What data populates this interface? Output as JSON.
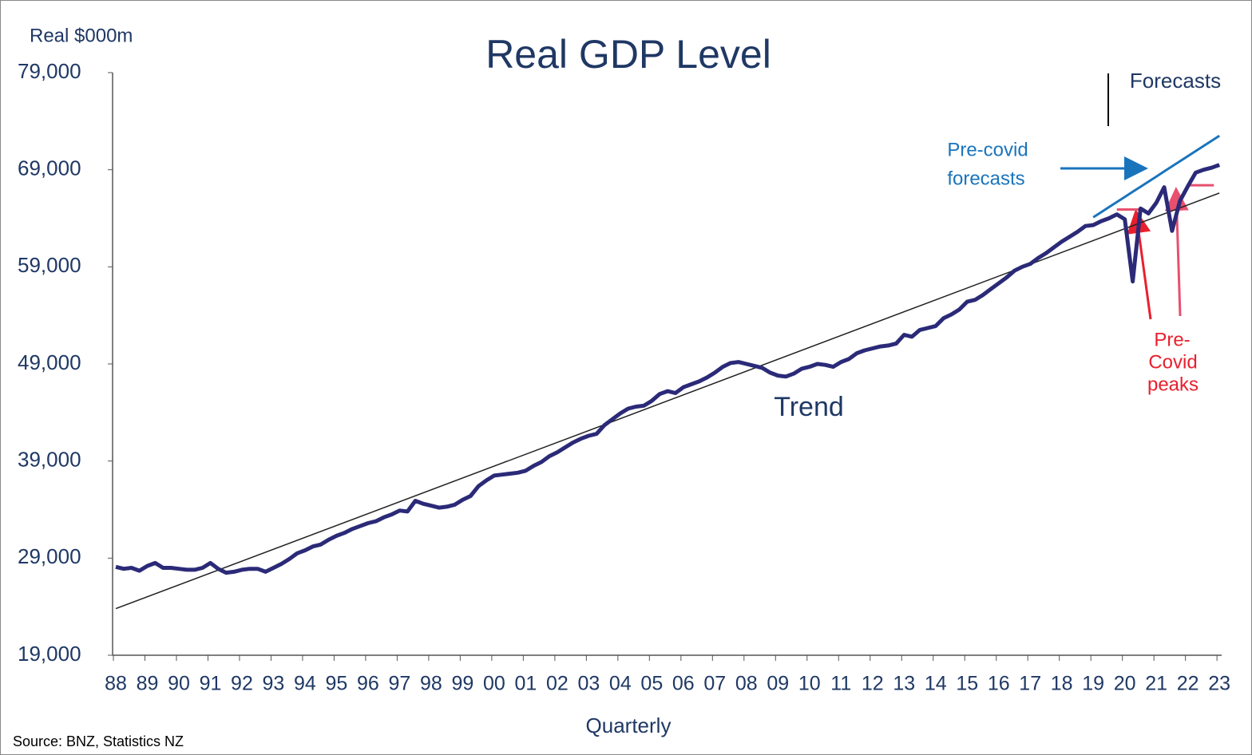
{
  "chart_data": {
    "type": "line",
    "title": "Real GDP Level",
    "y_label": "Real $000m",
    "x_label": "Quarterly",
    "source": "Source:  BNZ, Statistics NZ",
    "categories": [
      "88",
      null,
      null,
      null,
      "89",
      null,
      null,
      null,
      "90",
      null,
      null,
      null,
      "91",
      null,
      null,
      null,
      "92",
      null,
      null,
      null,
      "93",
      null,
      null,
      null,
      "94",
      null,
      null,
      null,
      "95",
      null,
      null,
      null,
      "96",
      null,
      null,
      null,
      "97",
      null,
      null,
      null,
      "98",
      null,
      null,
      null,
      "99",
      null,
      null,
      null,
      "00",
      null,
      null,
      null,
      "01",
      null,
      null,
      null,
      "02",
      null,
      null,
      null,
      "03",
      null,
      null,
      null,
      "04",
      null,
      null,
      null,
      "05",
      null,
      null,
      null,
      "06",
      null,
      null,
      null,
      "07",
      null,
      null,
      null,
      "08",
      null,
      null,
      null,
      "09",
      null,
      null,
      null,
      "10",
      null,
      null,
      null,
      "11",
      null,
      null,
      null,
      "12",
      null,
      null,
      null,
      "13",
      null,
      null,
      null,
      "14",
      null,
      null,
      null,
      "15",
      null,
      null,
      null,
      "16",
      null,
      null,
      null,
      "17",
      null,
      null,
      null,
      "18",
      null,
      null,
      null,
      "19",
      null,
      null,
      null,
      "20",
      null,
      null,
      null,
      "21",
      null,
      null,
      null,
      "22",
      null,
      null,
      null,
      "23"
    ],
    "series": [
      {
        "name": "Real GDP",
        "color": "#2b2a78",
        "values": [
          28100,
          27900,
          28000,
          27700,
          28200,
          28500,
          28000,
          28000,
          27900,
          27800,
          27800,
          28000,
          28500,
          27900,
          27500,
          27600,
          27800,
          27900,
          27900,
          27600,
          28000,
          28400,
          28900,
          29500,
          29800,
          30200,
          30400,
          30900,
          31300,
          31600,
          32000,
          32300,
          32600,
          32800,
          33200,
          33500,
          33900,
          33800,
          34900,
          34600,
          34400,
          34200,
          34300,
          34500,
          35000,
          35400,
          36400,
          37000,
          37500,
          37600,
          37700,
          37800,
          38000,
          38500,
          38900,
          39500,
          39900,
          40400,
          40900,
          41300,
          41600,
          41800,
          42700,
          43300,
          43900,
          44400,
          44600,
          44700,
          45200,
          45900,
          46200,
          46000,
          46600,
          46900,
          47200,
          47600,
          48100,
          48700,
          49100,
          49200,
          49000,
          48800,
          48600,
          48100,
          47800,
          47700,
          48000,
          48500,
          48700,
          49000,
          48900,
          48700,
          49200,
          49500,
          50100,
          50400,
          50600,
          50800,
          50900,
          51100,
          52000,
          51800,
          52500,
          52700,
          52900,
          53700,
          54100,
          54600,
          55400,
          55600,
          56100,
          56700,
          57300,
          57900,
          58600,
          59000,
          59300,
          59900,
          60400,
          61000,
          61600,
          62100,
          62600,
          63200,
          63300,
          63700,
          64000,
          64400,
          63900,
          57500,
          65000,
          64500,
          65600,
          67200,
          62700,
          65800,
          67300,
          68700,
          69000,
          69200,
          69500
        ]
      },
      {
        "name": "Pre-covid forecasts",
        "color": "#1a74bc",
        "values": [
          null,
          null,
          null,
          null,
          null,
          null,
          null,
          null,
          null,
          null,
          null,
          null,
          null,
          null,
          null,
          null,
          null,
          null,
          null,
          null,
          null,
          null,
          null,
          null,
          null,
          null,
          null,
          null,
          null,
          null,
          null,
          null,
          null,
          null,
          null,
          null,
          null,
          null,
          null,
          null,
          null,
          null,
          null,
          null,
          null,
          null,
          null,
          null,
          null,
          null,
          null,
          null,
          null,
          null,
          null,
          null,
          null,
          null,
          null,
          null,
          null,
          null,
          null,
          null,
          null,
          null,
          null,
          null,
          null,
          null,
          null,
          null,
          null,
          null,
          null,
          null,
          null,
          null,
          null,
          null,
          null,
          null,
          null,
          null,
          null,
          null,
          null,
          null,
          null,
          null,
          null,
          null,
          null,
          null,
          null,
          null,
          null,
          null,
          null,
          null,
          null,
          null,
          null,
          null,
          null,
          null,
          null,
          null,
          null,
          null,
          null,
          null,
          null,
          null,
          null,
          null,
          null,
          null,
          null,
          null,
          null,
          null,
          null,
          null,
          64100,
          64625,
          65150,
          65675,
          66200,
          66725,
          67250,
          67775,
          68300,
          68825,
          69350,
          69875,
          70400,
          70925,
          71450,
          71975,
          72500
        ]
      }
    ],
    "trend": {
      "label": "Trend",
      "start": 23800,
      "end": 66600,
      "color": "#222222"
    },
    "precovid_label": [
      "Pre-covid",
      "forecasts"
    ],
    "peaks": {
      "label": [
        "Pre-",
        "Covid",
        "peaks"
      ],
      "values": [
        64900,
        67400
      ],
      "color": "#e8506e"
    },
    "forecasts_label": "Forecasts",
    "ylim": [
      19000,
      79000
    ],
    "yticks": [
      {
        "value": 19000,
        "label": "19,000"
      },
      {
        "value": 29000,
        "label": "29,000"
      },
      {
        "value": 39000,
        "label": "39,000"
      },
      {
        "value": 49000,
        "label": "49,000"
      },
      {
        "value": 59000,
        "label": "59,000"
      },
      {
        "value": 69000,
        "label": "69,000"
      },
      {
        "value": 79000,
        "label": "79,000"
      }
    ],
    "grid": false
  }
}
